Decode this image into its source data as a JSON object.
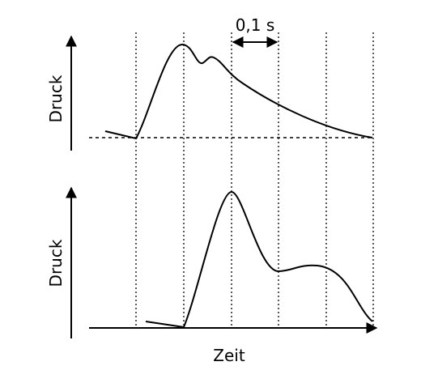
{
  "labels": {
    "top_y_axis": "Druck",
    "bottom_y_axis": "Druck",
    "x_axis": "Zeit",
    "interval": "0,1 s"
  }
}
